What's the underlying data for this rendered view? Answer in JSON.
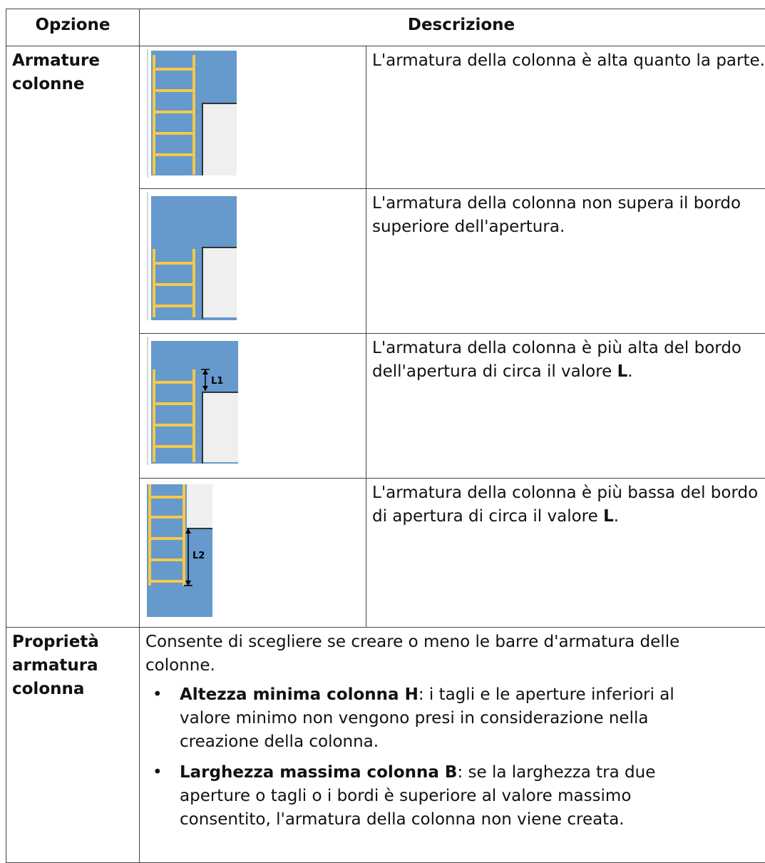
{
  "table": {
    "header": [
      "Opzione",
      "Descrizione"
    ],
    "rows": [
      {
        "option": "Armature colonne",
        "items": [
          {
            "description": [
              "L'armatura della colonna è alta quanto la parte."
            ]
          },
          {
            "description": [
              "L'armatura della colonna non supera il bordo superiore dell'apertura."
            ]
          },
          {
            "image_label": "L1",
            "description": [
              "L'armatura della colonna è più alta del bordo dell'apertura di circa il valore ",
              "L",
              "."
            ]
          },
          {
            "image_label": "L2",
            "description": [
              "L'armatura della colonna è più bassa del bordo di apertura di circa il valore ",
              "L",
              "."
            ]
          }
        ]
      },
      {
        "option": "Proprietà armatura colonna",
        "intro": "Consente di scegliere se creare o meno le barre d'armatura delle colonne.",
        "bullets": [
          {
            "term": "Altezza minima colonna H",
            "text": ": i tagli e le aperture inferiori al valore minimo non vengono presi in considerazione nella creazione della colonna."
          },
          {
            "term": "Larghezza massima colonna B",
            "text": ": se la larghezza tra due aperture o tagli o i bordi è superiore al valore massimo consentito, l'armatura della colonna non viene creata."
          }
        ]
      }
    ]
  }
}
